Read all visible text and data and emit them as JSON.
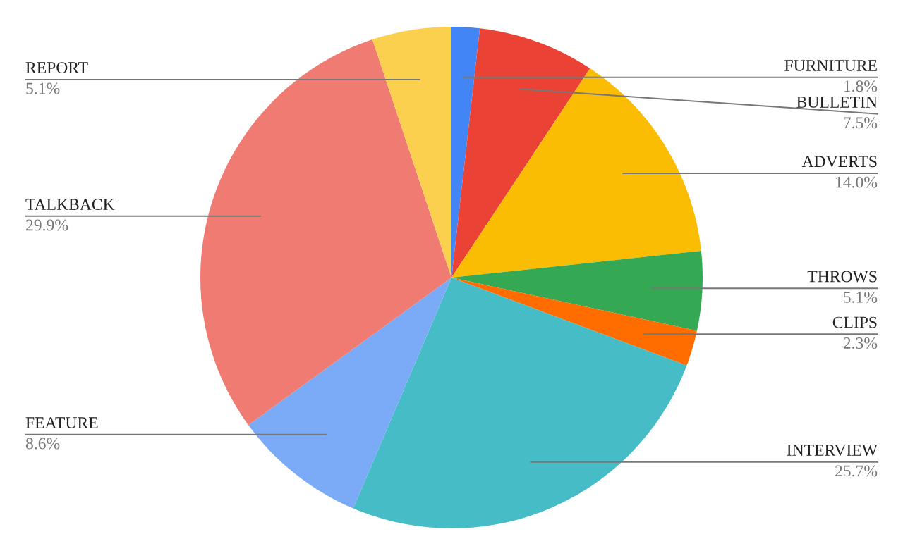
{
  "chart_data": {
    "type": "pie",
    "categories": [
      "FURNITURE",
      "BULLETIN",
      "ADVERTS",
      "THROWS",
      "CLIPS",
      "INTERVIEW",
      "FEATURE",
      "TALKBACK",
      "REPORT"
    ],
    "values": [
      1.8,
      7.5,
      14.0,
      5.1,
      2.3,
      25.7,
      8.6,
      29.9,
      5.1
    ],
    "value_labels": [
      "1.8%",
      "7.5%",
      "14.0%",
      "5.1%",
      "2.3%",
      "25.7%",
      "8.6%",
      "29.9%",
      "5.1%"
    ],
    "colors": [
      "#4285f4",
      "#ea4335",
      "#fbbc04",
      "#34a853",
      "#ff6d01",
      "#46bdc6",
      "#7baaf7",
      "#f07b72",
      "#fcd04f"
    ],
    "legend": false
  }
}
